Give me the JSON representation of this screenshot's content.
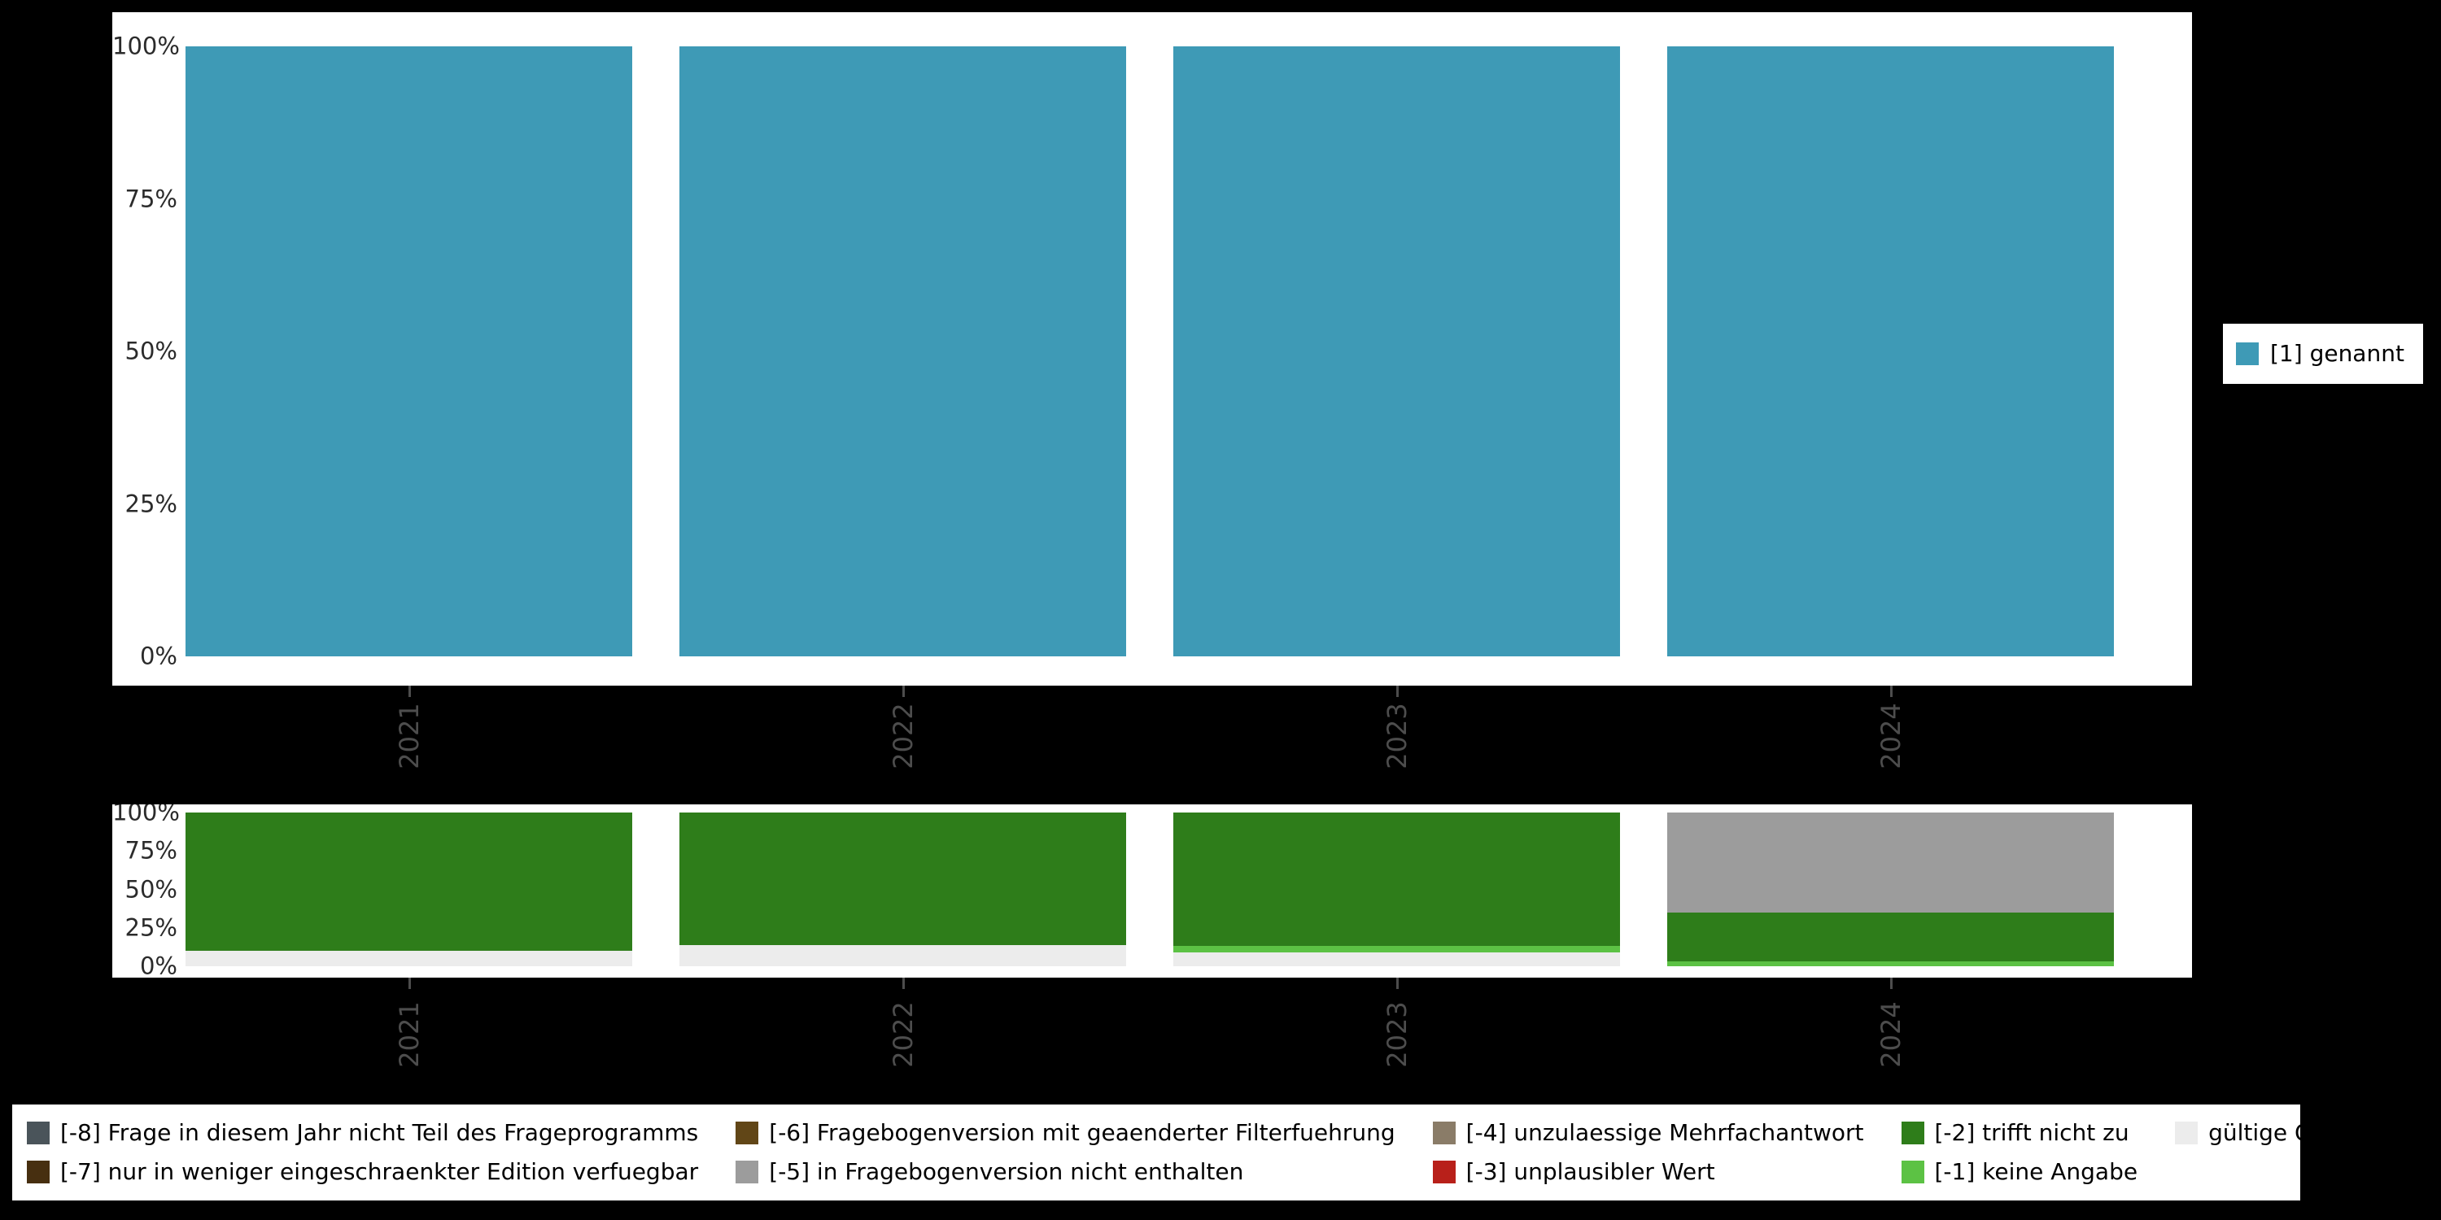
{
  "colors": {
    "page_background": "#000000",
    "panel_background": "#ffffff",
    "axis_tick_text": "#2b2b2b",
    "x_label_text": "#4d4d4d"
  },
  "chart_data": [
    {
      "type": "bar",
      "stacked": true,
      "unit": "percent",
      "title": "",
      "xlabel": "",
      "ylabel": "",
      "categories": [
        "2021",
        "2022",
        "2023",
        "2024"
      ],
      "series": [
        {
          "name": "[1] genannt",
          "color": "#3e9ab6",
          "values": [
            100,
            100,
            100,
            100
          ]
        }
      ],
      "ylim": [
        0,
        100
      ],
      "yticks": [
        "100%",
        "75%",
        "50%",
        "25%",
        "0%"
      ],
      "grid": false,
      "legend_position": "right"
    },
    {
      "type": "bar",
      "stacked": true,
      "unit": "percent",
      "title": "",
      "xlabel": "",
      "ylabel": "",
      "categories": [
        "2021",
        "2022",
        "2023",
        "2024"
      ],
      "series": [
        {
          "name": "gültige Observationen",
          "color": "#ececec",
          "values": [
            10,
            14,
            9,
            0
          ]
        },
        {
          "name": "[-1] keine Angabe",
          "color": "#5cc244",
          "values": [
            0,
            0,
            4,
            3
          ]
        },
        {
          "name": "[-2] trifft nicht zu",
          "color": "#2e7d1a",
          "values": [
            90,
            86,
            87,
            32
          ]
        },
        {
          "name": "[-5] in Fragebogenversion nicht enthalten",
          "color": "#9c9c9c",
          "values": [
            0,
            0,
            0,
            65
          ]
        }
      ],
      "ylim": [
        0,
        100
      ],
      "yticks": [
        "100%",
        "75%",
        "50%",
        "25%",
        "0%"
      ],
      "grid": false,
      "legend_position": "bottom"
    }
  ],
  "right_legend": {
    "items": [
      {
        "label": "[1] genannt",
        "color": "#3e9ab6"
      }
    ]
  },
  "bottom_legend": {
    "items": [
      {
        "label": "[-8] Frage in diesem Jahr nicht Teil des Frageprogramms",
        "color": "#4a545a"
      },
      {
        "label": "[-6] Fragebogenversion mit geaenderter Filterfuehrung",
        "color": "#614617"
      },
      {
        "label": "[-4] unzulaessige Mehrfachantwort",
        "color": "#8a7c68"
      },
      {
        "label": "[-2] trifft nicht zu",
        "color": "#2e7d1a"
      },
      {
        "label": "gültige Observationen",
        "color": "#ececec"
      },
      {
        "label": "[-7] nur in weniger eingeschraenkter Edition verfuegbar",
        "color": "#472f10"
      },
      {
        "label": "[-5] in Fragebogenversion nicht enthalten",
        "color": "#9c9c9c"
      },
      {
        "label": "[-3] unplausibler Wert",
        "color": "#b8201a"
      },
      {
        "label": "[-1] keine Angabe",
        "color": "#5cc244"
      }
    ]
  }
}
